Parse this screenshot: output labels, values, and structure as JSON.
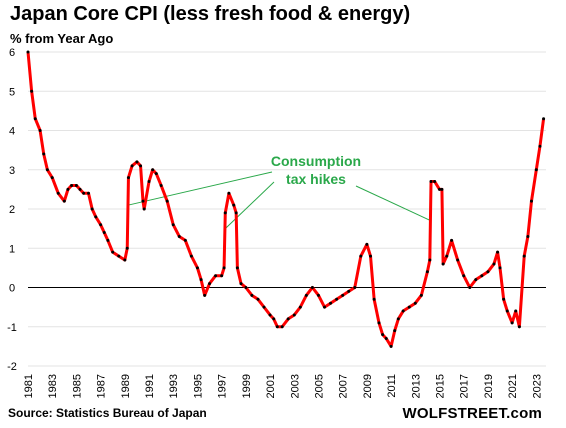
{
  "title": "Japan Core CPI (less fresh food & energy)",
  "brand": "WOLFSTREET.com",
  "chart_data": {
    "type": "line",
    "title": "Japan Core CPI (less fresh food & energy)",
    "ylabel": "% from Year Ago",
    "source": "Source: Statistics Bureau of Japan",
    "ylim": [
      -2,
      6
    ],
    "xlim": [
      1981,
      2023.8
    ],
    "y_ticks": [
      "-2",
      "-1",
      "0",
      "1",
      "2",
      "3",
      "4",
      "5",
      "6"
    ],
    "x_ticks": [
      "1981",
      "1983",
      "1985",
      "1987",
      "1989",
      "1991",
      "1993",
      "1995",
      "1997",
      "1999",
      "2001",
      "2003",
      "2005",
      "2007",
      "2009",
      "2011",
      "2013",
      "2015",
      "2017",
      "2019",
      "2021",
      "2023"
    ],
    "grid": "horizontal",
    "line_color": "#ff0000",
    "marker_color": "#000000",
    "annotation": {
      "lines": [
        "Consumption",
        "tax hikes"
      ],
      "color": "#2aa84a",
      "targets": [
        1989.3,
        1997.3,
        2014.3
      ]
    },
    "series": [
      {
        "x": [
          1981.0,
          1981.3,
          1981.6,
          1982.0,
          1982.3,
          1982.6,
          1983.0,
          1983.5,
          1984.0,
          1984.3,
          1984.6,
          1985.0,
          1985.3,
          1985.6,
          1986.0,
          1986.3,
          1986.6,
          1987.0,
          1987.3,
          1987.6,
          1988.0,
          1988.5,
          1989.0,
          1989.2,
          1989.3,
          1989.6,
          1990.0,
          1990.3,
          1990.5,
          1990.6,
          1991.0,
          1991.3,
          1991.6,
          1992.0,
          1992.5,
          1993.0,
          1993.5,
          1994.0,
          1994.5,
          1995.0,
          1995.3,
          1995.6,
          1996.0,
          1996.5,
          1997.0,
          1997.2,
          1997.3,
          1997.6,
          1998.0,
          1998.2,
          1998.3,
          1998.6,
          1999.0,
          1999.5,
          2000.0,
          2000.5,
          2001.0,
          2001.3,
          2001.6,
          2002.0,
          2002.5,
          2003.0,
          2003.5,
          2004.0,
          2004.5,
          2005.0,
          2005.5,
          2006.0,
          2006.5,
          2007.0,
          2007.5,
          2008.0,
          2008.5,
          2009.0,
          2009.3,
          2009.6,
          2010.0,
          2010.3,
          2010.6,
          2011.0,
          2011.3,
          2011.6,
          2012.0,
          2012.5,
          2013.0,
          2013.5,
          2014.0,
          2014.2,
          2014.3,
          2014.6,
          2015.0,
          2015.2,
          2015.3,
          2015.6,
          2016.0,
          2016.5,
          2017.0,
          2017.5,
          2018.0,
          2018.5,
          2019.0,
          2019.5,
          2019.8,
          2020.0,
          2020.3,
          2020.6,
          2021.0,
          2021.3,
          2021.6,
          2022.0,
          2022.3,
          2022.6,
          2023.0,
          2023.3,
          2023.6
        ],
        "y": [
          6.0,
          5.0,
          4.3,
          4.0,
          3.4,
          3.0,
          2.8,
          2.4,
          2.2,
          2.5,
          2.6,
          2.6,
          2.5,
          2.4,
          2.4,
          2.0,
          1.8,
          1.6,
          1.4,
          1.2,
          0.9,
          0.8,
          0.7,
          1.0,
          2.8,
          3.1,
          3.2,
          3.1,
          2.2,
          2.0,
          2.7,
          3.0,
          2.9,
          2.6,
          2.2,
          1.6,
          1.3,
          1.2,
          0.8,
          0.5,
          0.2,
          -0.2,
          0.1,
          0.3,
          0.3,
          0.5,
          1.9,
          2.4,
          2.1,
          1.9,
          0.5,
          0.1,
          0.0,
          -0.2,
          -0.3,
          -0.5,
          -0.7,
          -0.8,
          -1.0,
          -1.0,
          -0.8,
          -0.7,
          -0.5,
          -0.2,
          0.0,
          -0.2,
          -0.5,
          -0.4,
          -0.3,
          -0.2,
          -0.1,
          0.0,
          0.8,
          1.1,
          0.8,
          -0.3,
          -0.9,
          -1.2,
          -1.3,
          -1.5,
          -1.1,
          -0.8,
          -0.6,
          -0.5,
          -0.4,
          -0.2,
          0.4,
          0.7,
          2.7,
          2.7,
          2.5,
          2.5,
          0.6,
          0.8,
          1.2,
          0.7,
          0.3,
          0.0,
          0.2,
          0.3,
          0.4,
          0.6,
          0.9,
          0.5,
          -0.3,
          -0.6,
          -0.9,
          -0.6,
          -1.0,
          0.8,
          1.3,
          2.2,
          3.0,
          3.6,
          4.3
        ]
      }
    ]
  }
}
